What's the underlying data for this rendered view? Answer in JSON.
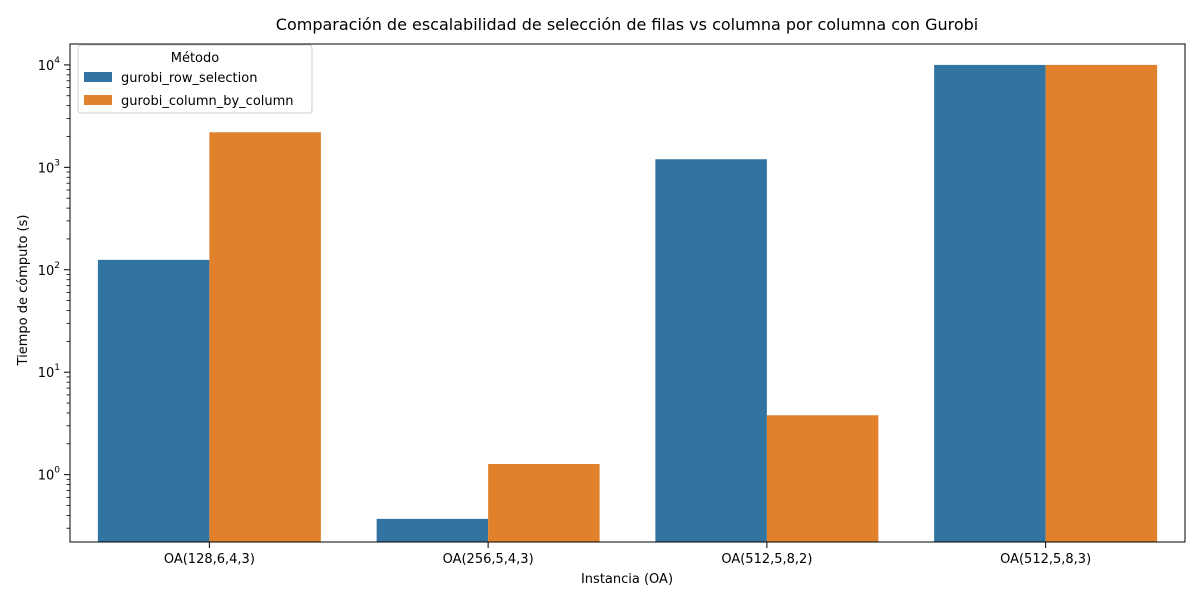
{
  "chart_data": {
    "type": "bar",
    "title": "Comparación de escalabilidad de selección de filas vs columna por columna con Gurobi",
    "xlabel": "Instancia (OA)",
    "ylabel": "Tiempo de cómputo (s)",
    "yscale": "log",
    "ylim": [
      0.22,
      16000
    ],
    "categories": [
      "OA(128,6,4,3)",
      "OA(256,5,4,3)",
      "OA(512,5,8,2)",
      "OA(512,5,8,3)"
    ],
    "series": [
      {
        "name": "gurobi_row_selection",
        "color": "#3274a1",
        "values": [
          125,
          0.37,
          1200,
          10000
        ]
      },
      {
        "name": "gurobi_column_by_column",
        "color": "#e1812c",
        "values": [
          2200,
          1.27,
          3.8,
          10000
        ]
      }
    ],
    "yticks": [
      {
        "base": "10",
        "exp": "0",
        "value": 1
      },
      {
        "base": "10",
        "exp": "1",
        "value": 10
      },
      {
        "base": "10",
        "exp": "2",
        "value": 100
      },
      {
        "base": "10",
        "exp": "3",
        "value": 1000
      },
      {
        "base": "10",
        "exp": "4",
        "value": 10000
      }
    ],
    "legend": {
      "title": "Método",
      "position": "top-left"
    },
    "grid": false
  }
}
